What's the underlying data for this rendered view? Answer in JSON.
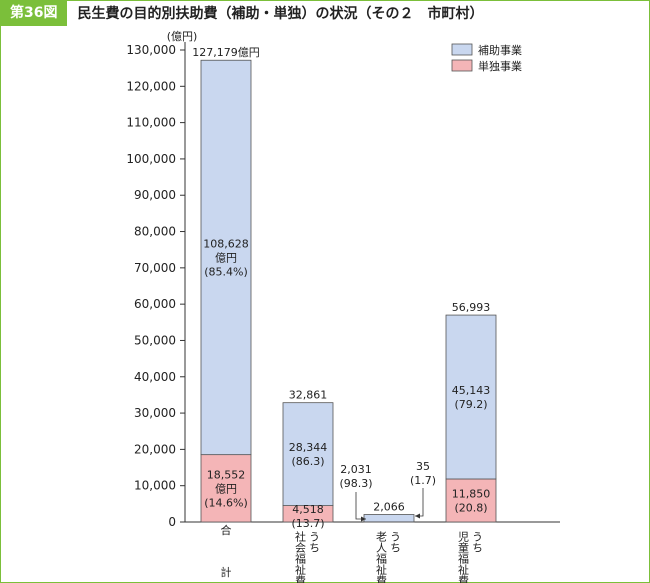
{
  "figure": {
    "badge": "第36図",
    "title": "民生費の目的別扶助費（補助・単独）の状況（その２　市町村）"
  },
  "colors": {
    "subsidy": "#c9d7ef",
    "independent": "#f4b5b7",
    "border": "#7bbf3a",
    "bar_stroke": "#555555"
  },
  "chart_data": {
    "type": "bar",
    "stacked": true,
    "unit_label": "(億円)",
    "categories": [
      "合計",
      "うち社会福祉費",
      "うち老人福祉費",
      "うち児童福祉費"
    ],
    "category_label_columns": [
      [
        "合",
        "計"
      ],
      [
        "うち",
        "社会福祉費"
      ],
      [
        "うち",
        "老人福祉費"
      ],
      [
        "うち",
        "児童福祉費"
      ]
    ],
    "series": [
      {
        "name": "単独事業",
        "values": [
          18552,
          4518,
          35,
          11850
        ]
      },
      {
        "name": "補助事業",
        "values": [
          108628,
          28344,
          2031,
          45143
        ]
      }
    ],
    "totals": [
      127179,
      32861,
      2066,
      56993
    ],
    "total_labels": [
      "127,179億円",
      "32,861",
      "2,066",
      "56,993"
    ],
    "subsidy_labels": [
      [
        "108,628",
        "億円",
        "(85.4%)"
      ],
      [
        "28,344",
        "(86.3)"
      ],
      [
        "2,031",
        "(98.3)"
      ],
      [
        "45,143",
        "(79.2)"
      ]
    ],
    "independent_labels": [
      [
        "18,552",
        "億円",
        "(14.6%)"
      ],
      [
        "4,518",
        "(13.7)"
      ],
      [
        "35",
        "(1.7)"
      ],
      [
        "11,850",
        "(20.8)"
      ]
    ],
    "ylim": [
      0,
      130000
    ],
    "yticks": [
      0,
      10000,
      20000,
      30000,
      40000,
      50000,
      60000,
      70000,
      80000,
      90000,
      100000,
      110000,
      120000,
      130000
    ],
    "ytick_labels": [
      "0",
      "10,000",
      "20,000",
      "30,000",
      "40,000",
      "50,000",
      "60,000",
      "70,000",
      "80,000",
      "90,000",
      "100,000",
      "110,000",
      "120,000",
      "130,000"
    ],
    "legend": {
      "position": "top-right",
      "entries": [
        "補助事業",
        "単独事業"
      ]
    },
    "grid": false
  }
}
